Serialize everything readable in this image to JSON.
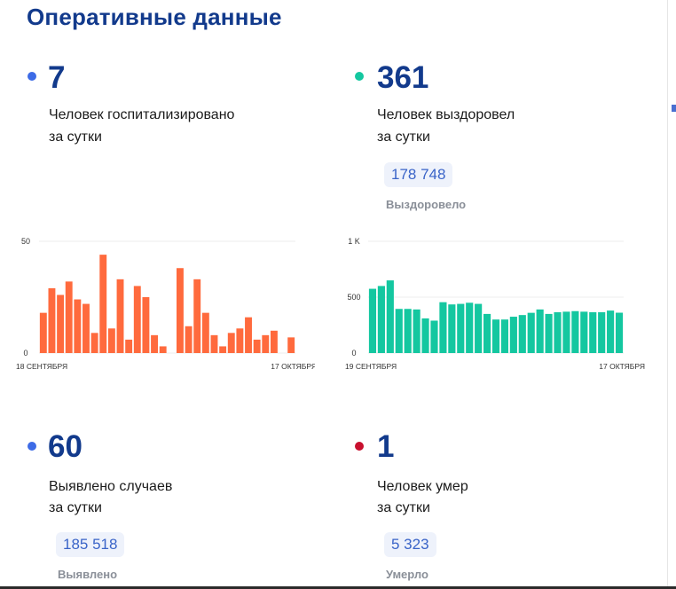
{
  "title": "Оперативные данные",
  "stats": {
    "hospitalized": {
      "value": "7",
      "line1": "Человек госпитализировано",
      "line2": "за сутки",
      "color": "#3d6be6"
    },
    "recovered": {
      "value": "361",
      "line1": "Человек выздоровел",
      "line2": "за сутки",
      "total": "178 748",
      "total_label": "Выздоровело",
      "color": "#14c7a0"
    },
    "cases": {
      "value": "60",
      "line1": "Выявлено случаев",
      "line2": "за сутки",
      "total": "185 518",
      "total_label": "Выявлено",
      "color": "#3d6be6"
    },
    "deaths": {
      "value": "1",
      "line1": "Человек умер",
      "line2": "за сутки",
      "total": "5 323",
      "total_label": "Умерло",
      "color": "#c8102e"
    }
  },
  "chart_data": [
    {
      "type": "bar",
      "x_start_label": "18 СЕНТЯБРЯ",
      "x_end_label": "17 ОКТЯБРЯ",
      "yticks": [
        0,
        50
      ],
      "ytick_labels": [
        "0",
        "50"
      ],
      "ylim": [
        0,
        50
      ],
      "grid": true,
      "color": "#ff6a3d",
      "values": [
        18,
        29,
        26,
        32,
        24,
        22,
        9,
        44,
        11,
        33,
        6,
        30,
        25,
        8,
        3,
        0,
        38,
        12,
        33,
        18,
        8,
        3,
        9,
        11,
        16,
        6,
        8,
        10,
        0,
        7
      ]
    },
    {
      "type": "bar",
      "x_start_label": "19 СЕНТЯБРЯ",
      "x_end_label": "17 ОКТЯБРЯ",
      "yticks": [
        0,
        500,
        1000
      ],
      "ytick_labels": [
        "0",
        "500",
        "1 K"
      ],
      "ylim": [
        0,
        1000
      ],
      "grid": true,
      "color": "#14c7a0",
      "values": [
        575,
        600,
        650,
        395,
        395,
        390,
        310,
        290,
        455,
        435,
        440,
        450,
        440,
        350,
        300,
        300,
        325,
        340,
        360,
        390,
        350,
        365,
        370,
        375,
        370,
        365,
        365,
        380,
        361
      ]
    }
  ]
}
